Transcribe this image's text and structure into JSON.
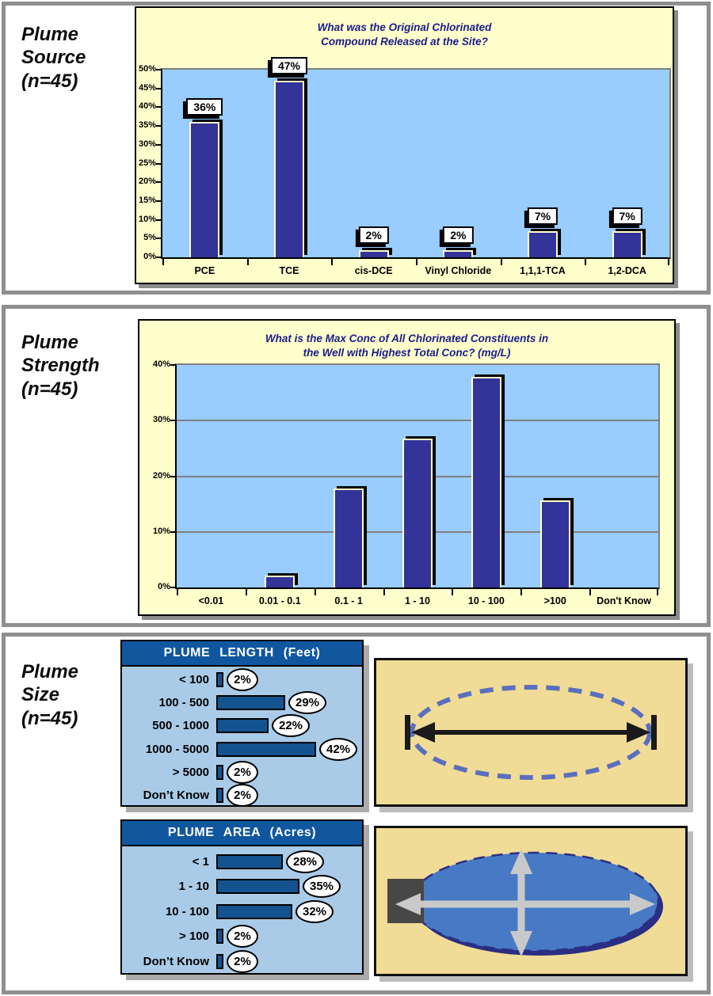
{
  "panels": [
    {
      "heading_lines": [
        "Plume",
        "Source",
        "(n=45)"
      ]
    },
    {
      "heading_lines": [
        "Plume",
        "Strength",
        "(n=45)"
      ]
    },
    {
      "heading_lines": [
        "Plume",
        "Size",
        "(n=45)"
      ]
    }
  ],
  "chart_data": [
    {
      "type": "bar",
      "group": "Plume Source (n=45)",
      "title": "What was the Original Chlorinated Compound Released at the Site?",
      "title_lines": [
        "What was the Original Chlorinated",
        "Compound Released at the Site?"
      ],
      "categories": [
        "PCE",
        "TCE",
        "cis-DCE",
        "Vinyl Chloride",
        "1,1,1-TCA",
        "1,2-DCA"
      ],
      "values": [
        36,
        47,
        2,
        2,
        7,
        7
      ],
      "data_labels": [
        "36%",
        "47%",
        "2%",
        "2%",
        "7%",
        "7%"
      ],
      "unit": "percent",
      "ylim": [
        0,
        50
      ],
      "ytick_step": 5,
      "grid": false,
      "show_data_labels": true
    },
    {
      "type": "bar",
      "group": "Plume Strength (n=45)",
      "title": "What is the Max Conc of All Chlorinated Constituents in the Well with Highest Total Conc? (mg/L)",
      "title_lines": [
        "What is the Max Conc of All Chlorinated Constituents in",
        "the Well with Highest Total Conc? (mg/L)"
      ],
      "categories": [
        "<0.01",
        "0.01 - 0.1",
        "0.1 - 1",
        "1 - 10",
        "10 - 100",
        ">100",
        "Don't Know"
      ],
      "values": [
        0,
        2.2,
        17.8,
        26.7,
        37.8,
        15.6,
        0
      ],
      "unit": "percent",
      "ylim": [
        0,
        40
      ],
      "ytick_step": 10,
      "grid": true,
      "show_data_labels": false
    },
    {
      "type": "bar-horizontal",
      "group": "Plume Size (n=45)",
      "title": "PLUME LENGTH (Feet)",
      "categories": [
        "< 100",
        "100 - 500",
        "500 - 1000",
        "1000 - 5000",
        "> 5000",
        "Don’t Know"
      ],
      "values": [
        2,
        29,
        22,
        42,
        2,
        2
      ],
      "data_labels": [
        "2%",
        "29%",
        "22%",
        "42%",
        "2%",
        "2%"
      ]
    },
    {
      "type": "bar-horizontal",
      "group": "Plume Size (n=45)",
      "title": "PLUME AREA (Acres)",
      "categories": [
        "< 1",
        "1 - 10",
        "10 - 100",
        "> 100",
        "Don’t Know"
      ],
      "values": [
        28,
        35,
        32,
        2,
        2
      ],
      "data_labels": [
        "28%",
        "35%",
        "32%",
        "2%",
        "2%"
      ]
    }
  ],
  "colors": {
    "chart_background": "#FFFFCC",
    "plot_background": "#99CCFF",
    "bar_fill": "#333399",
    "title_text": "#1B1B8A",
    "card_header": "#10579F",
    "card_body": "#A9CBE8",
    "horizontal_bar_fill": "#155390",
    "diagram_background": "#F0DC96",
    "plume_dashed_outline": "#5B6FBE",
    "plume_fill": "#4879C5",
    "plume_shadow": "#2B2E83",
    "arrow_gray": "#C9C9C9"
  }
}
